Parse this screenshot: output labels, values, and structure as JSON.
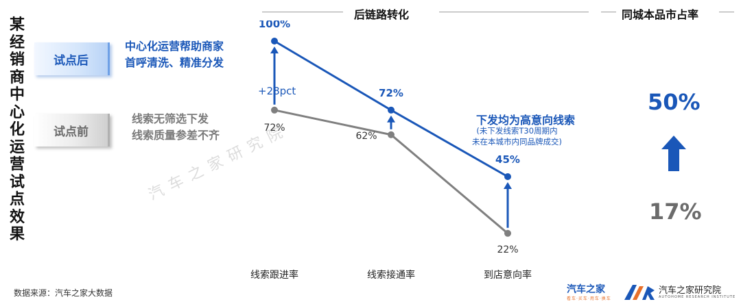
{
  "side_title": "某经销商中心化运营试点效果",
  "header": {
    "chain": "后链路转化",
    "share": "同城本品市占率"
  },
  "pilot_after": {
    "tag": "试点后",
    "desc_line1": "中心化运营帮助商家",
    "desc_line2": "首呼清洗、精准分发"
  },
  "pilot_before": {
    "tag": "试点前",
    "desc_line1": "线索无筛选下发",
    "desc_line2": "线索质量参差不齐"
  },
  "annotation": {
    "lift": "+28pct",
    "note_title": "下发均为高意向线索",
    "note_line1": "(未下发线索T30周期内",
    "note_line2": "未在本城市内同品牌成交)"
  },
  "share": {
    "after": "50%",
    "before": "17%"
  },
  "source": "数据来源：汽车之家大数据",
  "watermark": "汽车之家研究院",
  "logos": {
    "brand": "汽车之家",
    "brand_tag": "看车·买车·用车·换车",
    "institute": "汽车之家研究院",
    "institute_en": "AUTOHOME RESEARCH INSTITUTE"
  },
  "colors": {
    "after": "#1a57b8",
    "before": "#7f7f7f"
  },
  "chart_data": {
    "type": "line",
    "categories": [
      "线索跟进率",
      "线索接通率",
      "到店意向率"
    ],
    "series": [
      {
        "name": "试点后",
        "values": [
          100,
          72,
          45
        ],
        "labels": [
          "100%",
          "72%",
          "45%"
        ]
      },
      {
        "name": "试点前",
        "values": [
          72,
          62,
          22
        ],
        "labels": [
          "72%",
          "62%",
          "22%"
        ]
      }
    ],
    "ylim": [
      15,
      105
    ]
  }
}
